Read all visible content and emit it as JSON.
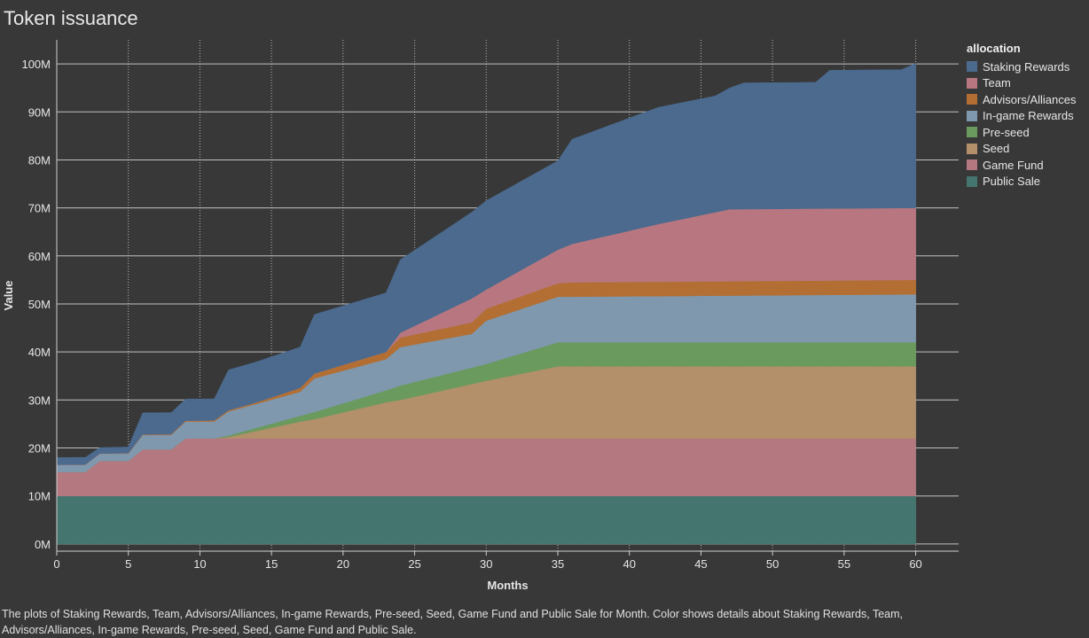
{
  "title": "Token issuance",
  "caption": "The plots of Staking Rewards, Team, Advisors/Alliances, In-game Rewards, Pre-seed, Seed, Game Fund and Public Sale for Month.  Color shows details about Staking Rewards, Team, Advisors/Alliances, In-game Rewards, Pre-seed, Seed, Game Fund and Public Sale.",
  "legend_title": "allocation",
  "chart_data": {
    "type": "area",
    "stacked": true,
    "xlabel": "Months",
    "ylabel": "Value",
    "xlim": [
      0,
      63
    ],
    "ylim": [
      -1.5,
      105
    ],
    "x_ticks": [
      0,
      5,
      10,
      15,
      20,
      25,
      30,
      35,
      40,
      45,
      50,
      55,
      60
    ],
    "y_ticks": [
      0,
      10,
      20,
      30,
      40,
      50,
      60,
      70,
      80,
      90,
      100
    ],
    "y_tick_labels": [
      "0M",
      "10M",
      "20M",
      "30M",
      "40M",
      "50M",
      "60M",
      "70M",
      "80M",
      "90M",
      "100M"
    ],
    "grid": true,
    "legend_position": "right",
    "months": [
      0,
      1,
      2,
      3,
      4,
      5,
      6,
      7,
      8,
      9,
      10,
      11,
      12,
      13,
      14,
      15,
      16,
      17,
      18,
      19,
      20,
      21,
      22,
      23,
      24,
      25,
      26,
      27,
      28,
      29,
      30,
      31,
      32,
      33,
      34,
      35,
      36,
      37,
      38,
      39,
      40,
      41,
      42,
      43,
      44,
      45,
      46,
      47,
      48,
      49,
      50,
      51,
      52,
      53,
      54,
      55,
      56,
      57,
      58,
      59,
      60
    ],
    "stack_order_bottom_to_top": [
      "Public Sale",
      "Game Fund",
      "Seed",
      "Pre-seed",
      "In-game Rewards",
      "Advisors/Alliances",
      "Team",
      "Staking Rewards"
    ],
    "series": [
      {
        "name": "Staking Rewards",
        "color": "#4b6a8e",
        "points": [
          [
            0,
            1.5
          ],
          [
            2,
            1.5
          ],
          [
            3,
            1.2
          ],
          [
            5,
            1.3
          ],
          [
            6,
            4.5
          ],
          [
            8,
            4.5
          ],
          [
            9,
            4.5
          ],
          [
            11,
            4.5
          ],
          [
            12,
            8.4
          ],
          [
            17,
            8.5
          ],
          [
            18,
            12.3
          ],
          [
            23,
            12.3
          ],
          [
            24,
            15.2
          ],
          [
            30,
            18.5
          ],
          [
            35,
            18.5
          ],
          [
            36,
            21.8
          ],
          [
            42,
            24.3
          ],
          [
            46,
            24.2
          ],
          [
            48,
            26.3
          ],
          [
            53,
            26.3
          ],
          [
            54,
            28.8
          ],
          [
            59,
            28.8
          ],
          [
            60,
            30.1
          ]
        ]
      },
      {
        "name": "Team",
        "color": "#b87780",
        "points": [
          [
            0,
            0
          ],
          [
            23,
            0
          ],
          [
            24,
            1
          ],
          [
            29,
            5
          ],
          [
            30,
            4
          ],
          [
            35,
            7
          ],
          [
            36,
            8
          ],
          [
            42,
            12
          ],
          [
            47,
            15
          ],
          [
            60,
            15
          ]
        ]
      },
      {
        "name": "Advisors/Alliances",
        "color": "#b36f33",
        "points": [
          [
            0,
            0
          ],
          [
            14,
            0.3
          ],
          [
            17,
            0.8
          ],
          [
            18,
            1
          ],
          [
            23,
            1.5
          ],
          [
            24,
            2
          ],
          [
            30,
            2.5
          ],
          [
            35,
            2.8
          ],
          [
            36,
            3
          ],
          [
            60,
            3
          ]
        ]
      },
      {
        "name": "In-game Rewards",
        "color": "#7f98ae",
        "points": [
          [
            0,
            1.5
          ],
          [
            2,
            1.5
          ],
          [
            3,
            1.5
          ],
          [
            5,
            1.5
          ],
          [
            6,
            3
          ],
          [
            8,
            3
          ],
          [
            9,
            3.5
          ],
          [
            11,
            3.5
          ],
          [
            12,
            5
          ],
          [
            17,
            5
          ],
          [
            18,
            7
          ],
          [
            23,
            6.5
          ],
          [
            24,
            8
          ],
          [
            29,
            7
          ],
          [
            30,
            9
          ],
          [
            35,
            9.5
          ],
          [
            36,
            9.5
          ],
          [
            60,
            10
          ]
        ]
      },
      {
        "name": "Pre-seed",
        "color": "#6a9a5e",
        "points": [
          [
            0,
            0
          ],
          [
            11,
            0
          ],
          [
            12,
            0.3
          ],
          [
            17,
            1.2
          ],
          [
            18,
            1.5
          ],
          [
            23,
            2.5
          ],
          [
            24,
            3
          ],
          [
            30,
            3.5
          ],
          [
            35,
            5
          ],
          [
            60,
            5
          ]
        ]
      },
      {
        "name": "Seed",
        "color": "#b3906a",
        "points": [
          [
            0,
            0
          ],
          [
            11,
            0
          ],
          [
            12,
            0.3
          ],
          [
            17,
            3.5
          ],
          [
            18,
            4
          ],
          [
            23,
            7.5
          ],
          [
            24,
            8
          ],
          [
            30,
            12
          ],
          [
            35,
            15
          ],
          [
            60,
            15
          ]
        ]
      },
      {
        "name": "Game Fund",
        "color": "#b37880",
        "points": [
          [
            0,
            5
          ],
          [
            2,
            5
          ],
          [
            3,
            7.3
          ],
          [
            5,
            7.3
          ],
          [
            6,
            9.7
          ],
          [
            8,
            9.7
          ],
          [
            9,
            12
          ],
          [
            11,
            12
          ],
          [
            12,
            12
          ],
          [
            60,
            12
          ]
        ]
      },
      {
        "name": "Public Sale",
        "color": "#45756f",
        "points": [
          [
            0,
            10
          ],
          [
            60,
            10
          ]
        ]
      }
    ]
  }
}
